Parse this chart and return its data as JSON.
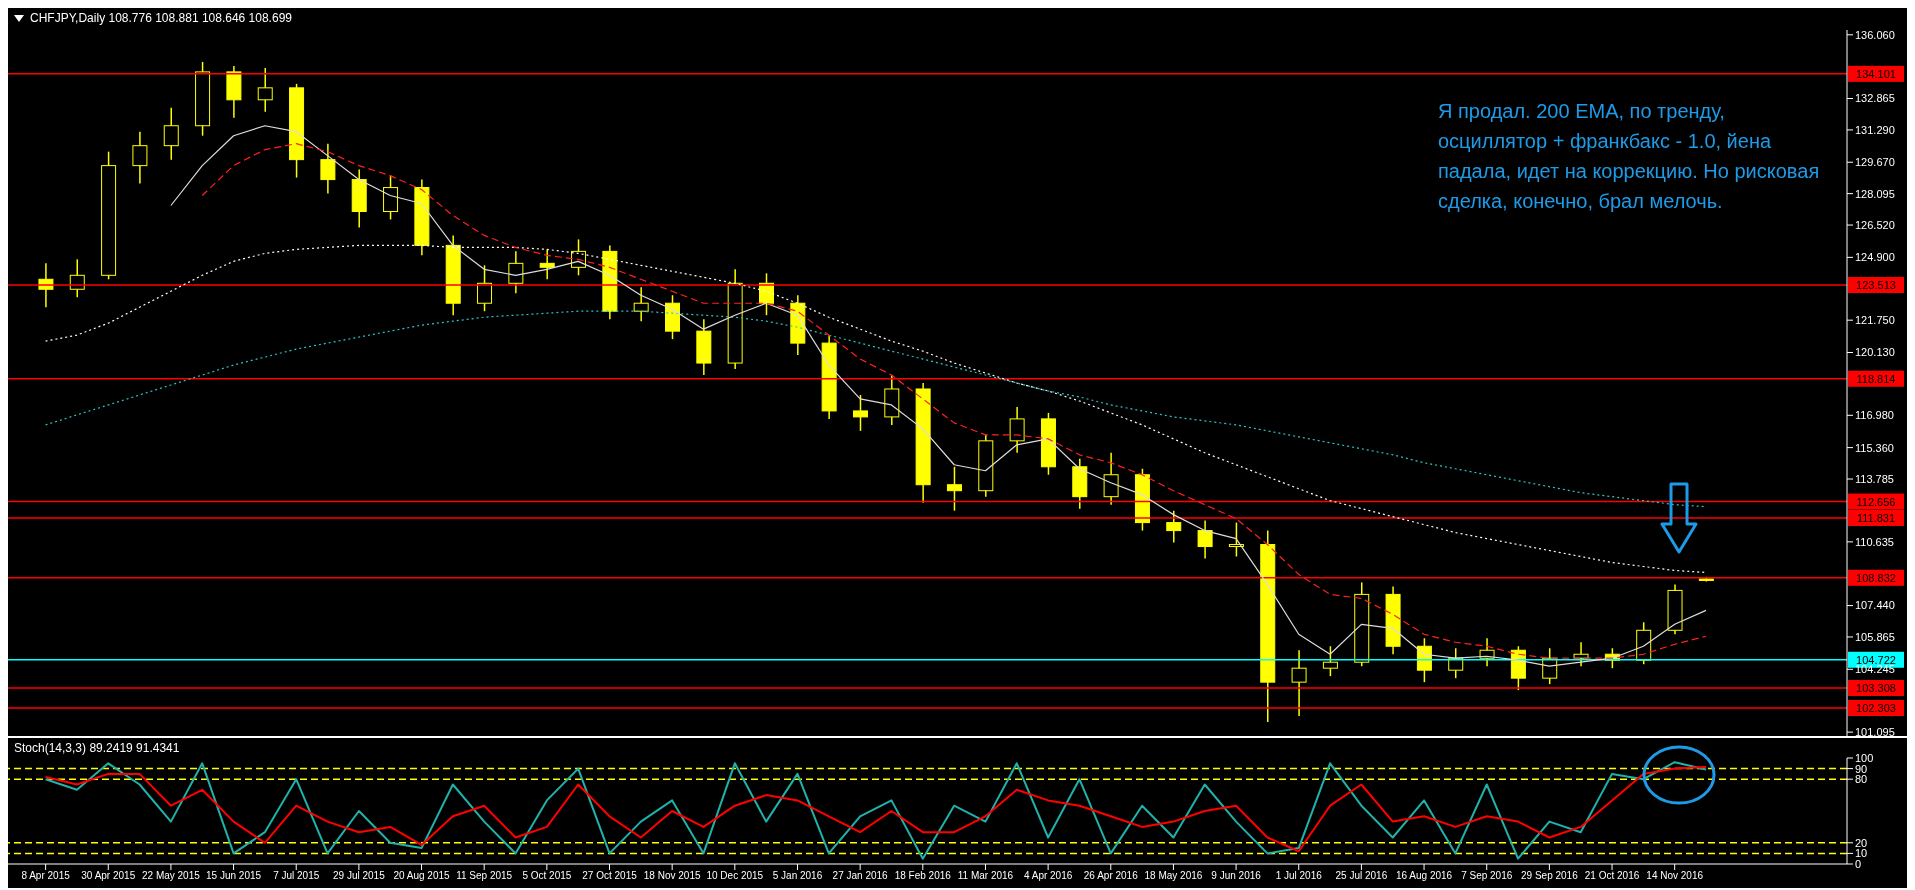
{
  "chart_data": [
    {
      "type": "candlestick",
      "title": "CHFJPY,Daily 108.776 108.881 108.646 108.699",
      "color": "#ffff00",
      "tick_labels": "y",
      "categories": [
        null,
        null,
        null,
        null,
        null,
        null,
        null,
        null,
        null,
        null,
        null,
        null,
        null,
        null,
        null,
        null,
        null,
        null,
        null,
        null,
        null,
        null,
        null,
        null,
        null,
        null,
        null,
        null,
        null,
        null,
        null,
        null,
        null,
        null,
        null,
        null,
        null,
        null,
        null,
        null,
        null,
        null,
        null,
        null,
        null,
        null,
        null,
        null,
        null,
        null,
        null,
        null,
        null,
        null
      ],
      "ohlc": [
        [
          123.8,
          124.6,
          122.4,
          123.3
        ],
        [
          123.3,
          124.8,
          122.9,
          124.0
        ],
        [
          124.0,
          130.2,
          123.8,
          129.5
        ],
        [
          129.5,
          131.2,
          128.6,
          130.5
        ],
        [
          130.5,
          132.4,
          129.8,
          131.5
        ],
        [
          131.5,
          134.7,
          131.0,
          134.2
        ],
        [
          134.2,
          134.5,
          131.9,
          132.8
        ],
        [
          132.8,
          134.4,
          132.2,
          133.4
        ],
        [
          133.4,
          133.6,
          128.9,
          129.8
        ],
        [
          129.8,
          130.6,
          128.1,
          128.8
        ],
        [
          128.8,
          129.3,
          126.4,
          127.2
        ],
        [
          127.2,
          129.0,
          126.8,
          128.4
        ],
        [
          128.4,
          128.8,
          125.0,
          125.5
        ],
        [
          125.5,
          126.0,
          122.0,
          122.6
        ],
        [
          122.6,
          124.5,
          122.2,
          123.6
        ],
        [
          123.6,
          125.2,
          123.1,
          124.6
        ],
        [
          124.6,
          125.3,
          123.8,
          124.4
        ],
        [
          124.4,
          125.8,
          124.0,
          125.2
        ],
        [
          125.2,
          125.5,
          121.8,
          122.2
        ],
        [
          122.2,
          123.4,
          121.7,
          122.6
        ],
        [
          122.6,
          123.0,
          120.8,
          121.2
        ],
        [
          121.2,
          121.8,
          119.0,
          119.6
        ],
        [
          119.6,
          124.3,
          119.3,
          123.6
        ],
        [
          123.6,
          124.1,
          122.0,
          122.6
        ],
        [
          122.6,
          123.0,
          120.0,
          120.6
        ],
        [
          120.6,
          121.0,
          116.8,
          117.2
        ],
        [
          117.2,
          118.0,
          116.2,
          116.9
        ],
        [
          116.9,
          119.0,
          116.5,
          118.3
        ],
        [
          118.3,
          118.6,
          112.6,
          113.5
        ],
        [
          113.5,
          114.4,
          112.2,
          113.2
        ],
        [
          113.2,
          116.0,
          112.9,
          115.7
        ],
        [
          115.7,
          117.4,
          115.1,
          116.8
        ],
        [
          116.8,
          117.1,
          114.0,
          114.4
        ],
        [
          114.4,
          114.8,
          112.3,
          112.9
        ],
        [
          112.9,
          115.1,
          112.5,
          114.0
        ],
        [
          114.0,
          114.3,
          111.2,
          111.6
        ],
        [
          111.6,
          112.2,
          110.6,
          111.2
        ],
        [
          111.2,
          111.7,
          109.8,
          110.4
        ],
        [
          110.4,
          111.6,
          109.9,
          110.5
        ],
        [
          110.5,
          111.2,
          101.6,
          103.6
        ],
        [
          103.6,
          105.2,
          101.9,
          104.3
        ],
        [
          104.3,
          105.4,
          103.9,
          104.6
        ],
        [
          104.6,
          108.6,
          104.4,
          108.0
        ],
        [
          108.0,
          108.4,
          105.0,
          105.4
        ],
        [
          105.4,
          105.8,
          103.6,
          104.2
        ],
        [
          104.2,
          105.3,
          103.8,
          104.8
        ],
        [
          104.8,
          105.8,
          104.4,
          105.2
        ],
        [
          105.2,
          105.4,
          103.2,
          103.8
        ],
        [
          103.8,
          105.3,
          103.5,
          104.8
        ],
        [
          104.8,
          105.6,
          104.4,
          105.0
        ],
        [
          105.0,
          105.3,
          104.3,
          104.7
        ],
        [
          104.7,
          106.6,
          104.5,
          106.2
        ],
        [
          106.2,
          108.5,
          106.0,
          108.2
        ],
        [
          108.776,
          108.881,
          108.646,
          108.699
        ]
      ],
      "series": [
        {
          "type": "line",
          "color": "#ffffff",
          "line_style": "dotted",
          "values": [
            120.7,
            121.0,
            121.6,
            122.4,
            123.2,
            124.0,
            124.7,
            125.1,
            125.3,
            125.4,
            125.5,
            125.5,
            125.5,
            125.4,
            125.4,
            125.4,
            125.3,
            125.1,
            124.8,
            124.5,
            124.2,
            123.9,
            123.6,
            123.2,
            122.6,
            121.9,
            121.3,
            120.7,
            120.2,
            119.6,
            119.1,
            118.6,
            118.2,
            117.7,
            117.1,
            116.5,
            115.8,
            115.1,
            114.5,
            113.9,
            113.3,
            112.7,
            112.3,
            111.9,
            111.5,
            111.1,
            110.8,
            110.5,
            110.2,
            109.9,
            109.6,
            109.4,
            109.2,
            109.1
          ]
        },
        {
          "type": "line",
          "color": "#2ec4c4",
          "line_style": "dotted",
          "values": [
            116.5,
            117.0,
            117.5,
            118.0,
            118.5,
            119.0,
            119.5,
            119.9,
            120.3,
            120.6,
            120.9,
            121.2,
            121.5,
            121.7,
            121.9,
            122.0,
            122.1,
            122.2,
            122.2,
            122.2,
            122.1,
            122.0,
            121.9,
            121.7,
            121.4,
            121.0,
            120.6,
            120.2,
            119.8,
            119.4,
            119.0,
            118.6,
            118.2,
            117.9,
            117.5,
            117.2,
            116.9,
            116.7,
            116.5,
            116.2,
            115.9,
            115.6,
            115.3,
            115.0,
            114.6,
            114.3,
            114.0,
            113.7,
            113.4,
            113.1,
            112.9,
            112.7,
            112.5,
            112.4
          ]
        },
        {
          "type": "line",
          "color": "#dddddd",
          "line_style": "solid",
          "values": [
            null,
            null,
            null,
            null,
            127.5,
            129.5,
            131.0,
            131.5,
            131.2,
            130.0,
            128.8,
            128.0,
            127.6,
            125.5,
            124.3,
            124.0,
            124.3,
            124.7,
            124.0,
            123.0,
            122.3,
            121.3,
            122.0,
            122.6,
            122.0,
            119.5,
            117.8,
            117.5,
            116.3,
            114.5,
            114.2,
            115.5,
            115.8,
            114.3,
            113.6,
            113.0,
            112.0,
            111.2,
            110.8,
            108.5,
            106.0,
            105.0,
            106.5,
            106.3,
            105.0,
            104.8,
            104.9,
            104.7,
            104.4,
            104.6,
            104.8,
            105.4,
            106.5,
            107.2
          ]
        },
        {
          "type": "line",
          "color": "#ff2020",
          "line_style": "dashed",
          "values": [
            null,
            null,
            null,
            null,
            null,
            128.0,
            129.5,
            130.3,
            130.6,
            130.2,
            129.5,
            129.0,
            128.3,
            127.0,
            126.0,
            125.4,
            125.0,
            124.8,
            124.4,
            123.8,
            123.2,
            122.6,
            122.6,
            122.6,
            122.2,
            121.0,
            119.8,
            119.0,
            117.8,
            116.6,
            116.0,
            116.0,
            115.8,
            115.0,
            114.6,
            114.0,
            113.2,
            112.5,
            111.8,
            110.5,
            109.0,
            108.0,
            107.8,
            107.0,
            106.0,
            105.6,
            105.4,
            105.0,
            104.8,
            104.8,
            104.8,
            105.0,
            105.5,
            105.9
          ]
        }
      ],
      "ylim": [
        100.9,
        136.3
      ],
      "yticks": [
        {
          "value": 136.06,
          "label": "136.060"
        },
        {
          "value": 132.865,
          "label": "132.865"
        },
        {
          "value": 131.29,
          "label": "131.290"
        },
        {
          "value": 129.67,
          "label": "129.670"
        },
        {
          "value": 128.095,
          "label": "128.095"
        },
        {
          "value": 126.52,
          "label": "126.520"
        },
        {
          "value": 124.9,
          "label": "124.900"
        },
        {
          "value": 121.75,
          "label": "121.750"
        },
        {
          "value": 120.13,
          "label": "120.130"
        },
        {
          "value": 116.98,
          "label": "116.980"
        },
        {
          "value": 115.36,
          "label": "115.360"
        },
        {
          "value": 113.785,
          "label": "113.785"
        },
        {
          "value": 110.635,
          "label": "110.635"
        },
        {
          "value": 107.44,
          "label": "107.440"
        },
        {
          "value": 105.865,
          "label": "105.865"
        },
        {
          "value": 104.245,
          "label": "104.245"
        },
        {
          "value": 101.095,
          "label": "101.095"
        }
      ],
      "ref_lines": [
        {
          "axis": "y",
          "value": 134.101,
          "label": "134.101",
          "color": "#ff0000"
        },
        {
          "axis": "y",
          "value": 123.513,
          "label": "123.513",
          "color": "#ff0000"
        },
        {
          "axis": "y",
          "value": 118.814,
          "label": "118.814",
          "color": "#ff0000"
        },
        {
          "axis": "y",
          "value": 112.656,
          "label": "112.656",
          "color": "#ff0000"
        },
        {
          "axis": "y",
          "value": 111.831,
          "label": "111.831",
          "color": "#ff0000"
        },
        {
          "axis": "y",
          "value": 108.832,
          "label": "108.832",
          "color": "#ff0000"
        },
        {
          "axis": "y",
          "value": 104.722,
          "label": "104.722",
          "color": "#00ffff"
        },
        {
          "axis": "y",
          "value": 103.308,
          "label": "103.308",
          "color": "#ff0000"
        },
        {
          "axis": "y",
          "value": 102.303,
          "label": "102.303",
          "color": "#ff0000"
        }
      ],
      "annotations": [
        "Я продал. 200 EMA, по тренду, осциллятор + франкбакс - 1.0, йена падала, идет на коррекцию. Но рисковая сделка, конечно, брал мелочь."
      ]
    },
    {
      "type": "line",
      "title": "Stoch(14,3,3) 89.2419 91.4341",
      "categories": [
        "8 Apr 2015",
        null,
        "30 Apr 2015",
        null,
        "22 May 2015",
        null,
        "15 Jun 2015",
        null,
        "7 Jul 2015",
        null,
        "29 Jul 2015",
        null,
        "20 Aug 2015",
        null,
        "11 Sep 2015",
        null,
        "5 Oct 2015",
        null,
        "27 Oct 2015",
        null,
        "18 Nov 2015",
        null,
        "10 Dec 2015",
        null,
        "5 Jan 2016",
        null,
        "27 Jan 2016",
        null,
        "18 Feb 2016",
        null,
        "11 Mar 2016",
        null,
        "4 Apr 2016",
        null,
        "26 Apr 2016",
        null,
        "18 May 2016",
        null,
        "9 Jun 2016",
        null,
        "1 Jul 2016",
        null,
        "25 Jul 2016",
        null,
        "16 Aug 2016",
        null,
        "7 Sep 2016",
        null,
        "29 Sep 2016",
        null,
        "21 Oct 2016",
        null,
        "14 Nov 2016",
        null
      ],
      "series": [
        {
          "color": "#20b2aa",
          "values": [
            80,
            70,
            95,
            75,
            40,
            95,
            10,
            30,
            80,
            10,
            50,
            20,
            15,
            75,
            40,
            10,
            60,
            90,
            10,
            40,
            60,
            10,
            95,
            40,
            85,
            10,
            45,
            60,
            5,
            55,
            40,
            95,
            25,
            80,
            10,
            55,
            25,
            75,
            40,
            10,
            15,
            95,
            55,
            25,
            60,
            10,
            75,
            5,
            40,
            30,
            85,
            80,
            96,
            89.2419
          ]
        },
        {
          "color": "#ff0000",
          "values": [
            82,
            75,
            85,
            85,
            55,
            70,
            40,
            20,
            55,
            40,
            30,
            35,
            18,
            45,
            55,
            25,
            35,
            75,
            45,
            25,
            50,
            35,
            55,
            65,
            60,
            45,
            30,
            50,
            30,
            30,
            45,
            70,
            60,
            55,
            45,
            35,
            40,
            50,
            55,
            25,
            12,
            55,
            75,
            40,
            45,
            35,
            45,
            40,
            25,
            35,
            60,
            85,
            90,
            91.4341
          ]
        }
      ],
      "ylim": [
        0,
        100
      ],
      "yticks": [
        0,
        10,
        20,
        80,
        90,
        100
      ],
      "ref_lines": [
        {
          "axis": "y",
          "value": 10,
          "color": "#ffff00",
          "line_style": "dashed"
        },
        {
          "axis": "y",
          "value": 20,
          "color": "#ffff00",
          "line_style": "dashed"
        },
        {
          "axis": "y",
          "value": 80,
          "color": "#ffff00",
          "line_style": "dashed"
        },
        {
          "axis": "y",
          "value": 90,
          "color": "#ffff00",
          "line_style": "dashed"
        }
      ]
    }
  ]
}
